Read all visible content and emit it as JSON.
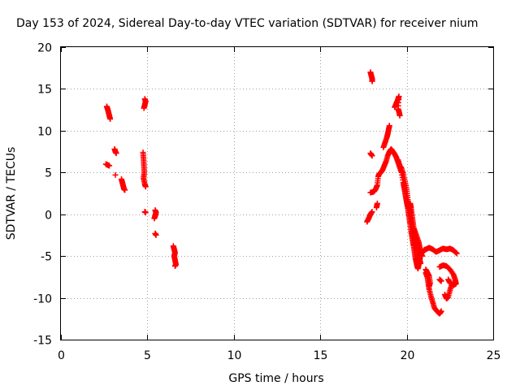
{
  "chart_data": {
    "type": "scatter",
    "title": "Day 153 of 2024, Sidereal Day-to-day VTEC variation (SDTVAR) for receiver nium",
    "xlabel": "GPS time / hours",
    "ylabel": "SDTVAR / TECUs",
    "xlim": [
      0,
      25
    ],
    "ylim": [
      -15,
      20
    ],
    "xticks": [
      0,
      5,
      10,
      15,
      20,
      25
    ],
    "yticks": [
      -15,
      -10,
      -5,
      0,
      5,
      10,
      15,
      20
    ],
    "grid": true,
    "marker": "+",
    "color": "#ff0000",
    "series": [
      {
        "name": "SDTVAR",
        "segments": [
          [
            [
              2.65,
              12.9
            ],
            [
              2.7,
              12.6
            ],
            [
              2.75,
              12.2
            ],
            [
              2.8,
              11.8
            ],
            [
              2.85,
              11.4
            ]
          ],
          [
            [
              2.6,
              6.0
            ],
            [
              2.7,
              5.9
            ],
            [
              2.8,
              5.8
            ]
          ],
          [
            [
              3.1,
              7.8
            ],
            [
              3.15,
              7.5
            ],
            [
              3.2,
              7.3
            ]
          ],
          [
            [
              3.15,
              4.7
            ]
          ],
          [
            [
              3.5,
              4.2
            ],
            [
              3.55,
              3.8
            ],
            [
              3.6,
              3.4
            ],
            [
              3.65,
              3.0
            ],
            [
              3.7,
              2.9
            ]
          ],
          [
            [
              4.85,
              13.8
            ],
            [
              4.9,
              13.5
            ],
            [
              4.85,
              13.1
            ],
            [
              4.8,
              12.7
            ]
          ],
          [
            [
              4.75,
              7.4
            ],
            [
              4.78,
              6.6
            ],
            [
              4.8,
              5.8
            ],
            [
              4.82,
              5.0
            ],
            [
              4.78,
              4.3
            ],
            [
              4.85,
              3.6
            ],
            [
              4.9,
              3.3
            ]
          ],
          [
            [
              4.85,
              0.3
            ],
            [
              4.9,
              0.2
            ]
          ],
          [
            [
              5.45,
              0.5
            ],
            [
              5.5,
              0.2
            ],
            [
              5.45,
              -0.2
            ],
            [
              5.4,
              -0.5
            ]
          ],
          [
            [
              5.45,
              -2.3
            ],
            [
              5.5,
              -2.5
            ]
          ],
          [
            [
              6.5,
              -3.8
            ],
            [
              6.55,
              -4.2
            ],
            [
              6.6,
              -4.6
            ],
            [
              6.55,
              -5.0
            ],
            [
              6.6,
              -5.5
            ],
            [
              6.65,
              -6.0
            ],
            [
              6.6,
              -6.2
            ]
          ],
          [
            [
              17.9,
              17.0
            ],
            [
              17.95,
              16.6
            ],
            [
              18.0,
              16.2
            ],
            [
              18.0,
              15.9
            ]
          ],
          [
            [
              17.9,
              7.3
            ],
            [
              18.0,
              7.0
            ]
          ],
          [
            [
              17.7,
              -0.9
            ],
            [
              17.8,
              -0.5
            ],
            [
              17.9,
              0.0
            ],
            [
              18.0,
              0.3
            ]
          ],
          [
            [
              17.9,
              2.6
            ],
            [
              18.1,
              2.7
            ],
            [
              18.2,
              3.0
            ],
            [
              18.3,
              3.5
            ],
            [
              18.35,
              4.5
            ],
            [
              18.4,
              4.8
            ],
            [
              18.5,
              5.0
            ],
            [
              18.6,
              5.3
            ],
            [
              18.7,
              5.8
            ],
            [
              18.8,
              6.3
            ],
            [
              18.9,
              7.0
            ],
            [
              19.0,
              7.5
            ],
            [
              19.1,
              7.8
            ],
            [
              19.2,
              7.5
            ],
            [
              19.3,
              7.2
            ],
            [
              19.4,
              6.8
            ],
            [
              19.5,
              6.2
            ],
            [
              19.6,
              5.6
            ],
            [
              19.7,
              5.0
            ],
            [
              19.8,
              3.8
            ],
            [
              19.85,
              3.2
            ],
            [
              19.9,
              2.6
            ],
            [
              19.95,
              2.0
            ],
            [
              20.0,
              1.4
            ],
            [
              20.05,
              0.9
            ],
            [
              20.1,
              0.2
            ],
            [
              20.15,
              -0.5
            ],
            [
              20.2,
              -1.2
            ],
            [
              20.25,
              -2.0
            ],
            [
              20.3,
              -2.6
            ],
            [
              20.35,
              -3.2
            ],
            [
              20.4,
              -3.8
            ],
            [
              20.45,
              -4.5
            ],
            [
              20.5,
              -5.2
            ],
            [
              20.55,
              -5.7
            ],
            [
              20.6,
              -6.2
            ],
            [
              20.65,
              -6.5
            ],
            [
              20.7,
              -6.0
            ]
          ],
          [
            [
              18.25,
              0.8
            ],
            [
              18.3,
              1.3
            ]
          ],
          [
            [
              19.0,
              10.6
            ],
            [
              18.95,
              10.1
            ],
            [
              18.9,
              9.6
            ],
            [
              18.85,
              9.2
            ],
            [
              18.75,
              8.6
            ],
            [
              18.65,
              8.0
            ]
          ],
          [
            [
              19.3,
              12.8
            ],
            [
              19.4,
              13.3
            ],
            [
              19.5,
              13.8
            ],
            [
              19.55,
              14.1
            ],
            [
              19.5,
              12.6
            ],
            [
              19.55,
              12.3
            ],
            [
              19.6,
              11.8
            ]
          ],
          [
            [
              19.5,
              6.5
            ],
            [
              19.6,
              5.8
            ],
            [
              19.7,
              5.5
            ],
            [
              19.8,
              4.8
            ],
            [
              19.9,
              3.9
            ],
            [
              20.0,
              3.0
            ],
            [
              20.05,
              2.0
            ],
            [
              20.1,
              1.0
            ],
            [
              20.2,
              0.5
            ],
            [
              20.25,
              -0.2
            ],
            [
              20.3,
              -1.0
            ],
            [
              20.35,
              -1.8
            ],
            [
              20.4,
              -2.4
            ],
            [
              20.5,
              -3.0
            ],
            [
              20.55,
              -3.6
            ],
            [
              20.6,
              -4.2
            ],
            [
              20.7,
              -4.8
            ],
            [
              20.75,
              -5.4
            ],
            [
              20.8,
              -5.9
            ]
          ],
          [
            [
              20.2,
              1.3
            ],
            [
              20.25,
              0.8
            ],
            [
              20.3,
              0.0
            ],
            [
              20.35,
              -0.8
            ],
            [
              20.4,
              -1.6
            ],
            [
              20.5,
              -2.2
            ],
            [
              20.6,
              -2.8
            ],
            [
              20.7,
              -3.4
            ],
            [
              20.75,
              -4.0
            ],
            [
              20.8,
              -4.6
            ],
            [
              20.9,
              -5.0
            ]
          ],
          [
            [
              20.9,
              -4.6
            ],
            [
              21.0,
              -4.3
            ],
            [
              21.1,
              -4.2
            ],
            [
              21.3,
              -4.0
            ],
            [
              21.5,
              -4.2
            ],
            [
              21.7,
              -4.5
            ],
            [
              21.9,
              -4.3
            ],
            [
              22.1,
              -4.1
            ],
            [
              22.3,
              -4.2
            ],
            [
              22.5,
              -4.1
            ],
            [
              22.7,
              -4.3
            ],
            [
              22.9,
              -4.7
            ]
          ],
          [
            [
              21.9,
              -6.3
            ],
            [
              22.1,
              -6.1
            ],
            [
              22.3,
              -6.2
            ],
            [
              22.5,
              -6.6
            ],
            [
              22.7,
              -7.2
            ],
            [
              22.8,
              -7.8
            ],
            [
              22.85,
              -8.3
            ],
            [
              22.7,
              -8.5
            ],
            [
              22.5,
              -8.2
            ],
            [
              22.4,
              -7.8
            ]
          ],
          [
            [
              21.1,
              -7.0
            ],
            [
              21.2,
              -7.6
            ],
            [
              21.25,
              -8.3
            ],
            [
              21.3,
              -9.0
            ],
            [
              21.4,
              -9.8
            ],
            [
              21.5,
              -10.5
            ],
            [
              21.6,
              -11.2
            ],
            [
              21.75,
              -11.6
            ],
            [
              21.9,
              -11.9
            ],
            [
              22.0,
              -11.6
            ]
          ],
          [
            [
              21.1,
              -6.6
            ],
            [
              21.2,
              -7.0
            ],
            [
              21.3,
              -7.4
            ],
            [
              21.35,
              -8.2
            ],
            [
              21.3,
              -8.6
            ]
          ],
          [
            [
              22.2,
              -9.6
            ],
            [
              22.3,
              -10.1
            ],
            [
              22.4,
              -9.9
            ],
            [
              22.5,
              -9.1
            ],
            [
              22.6,
              -8.4
            ]
          ],
          [
            [
              21.9,
              -7.8
            ],
            [
              22.0,
              -8.0
            ]
          ]
        ]
      }
    ]
  }
}
